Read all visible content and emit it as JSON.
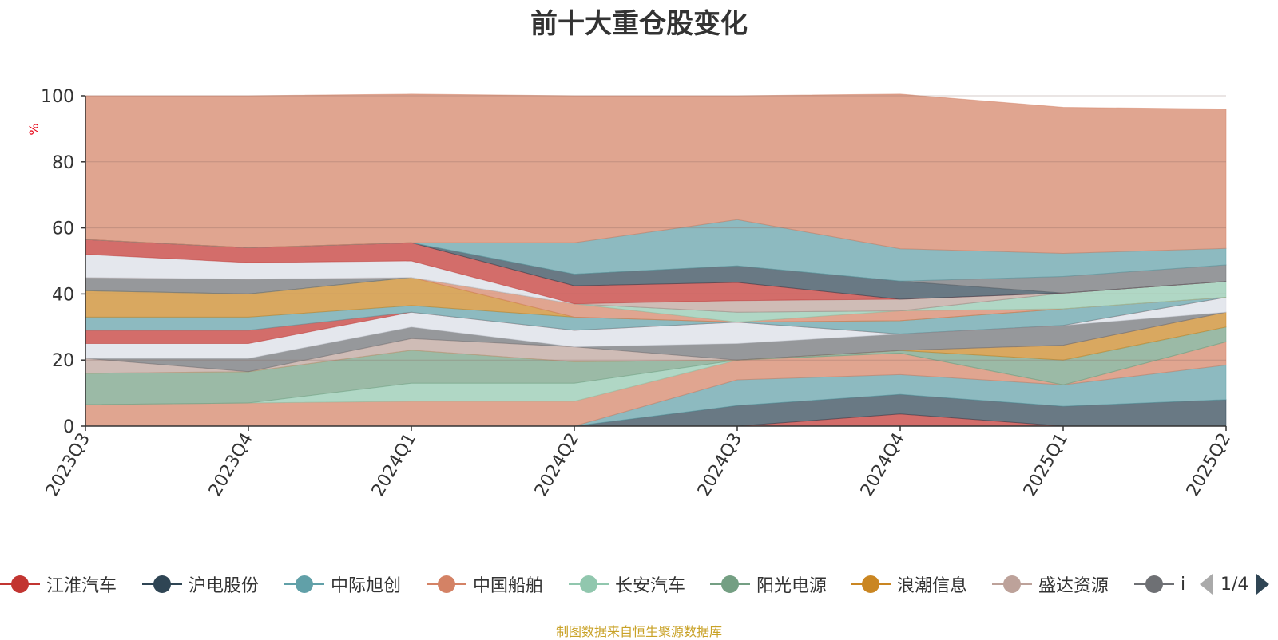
{
  "title": "前十大重仓股变化",
  "footer": "制图数据来自恒生聚源数据库",
  "legend": {
    "page_indicator": "1/4",
    "items": [
      {
        "label": "江淮汽车",
        "color": "#c23531"
      },
      {
        "label": "沪电股份",
        "color": "#2f4554"
      },
      {
        "label": "中际旭创",
        "color": "#61a0a8"
      },
      {
        "label": "中国船舶",
        "color": "#d48265"
      },
      {
        "label": "长安汽车",
        "color": "#91c7ae"
      },
      {
        "label": "阳光电源",
        "color": "#749f83"
      },
      {
        "label": "浪潮信息",
        "color": "#ca8622"
      },
      {
        "label": "盛达资源",
        "color": "#bda29a"
      },
      {
        "label": "i",
        "color": "#6e7074"
      }
    ]
  },
  "chart_data": {
    "type": "area",
    "stacked": true,
    "xlabel": "",
    "ylabel": "%",
    "ylim": [
      0,
      100
    ],
    "yticks": [
      0,
      20,
      40,
      60,
      80,
      100
    ],
    "categories": [
      "2023Q3",
      "2023Q4",
      "2024Q1",
      "2024Q2",
      "2024Q3",
      "2024Q4",
      "2025Q1",
      "2025Q2"
    ],
    "series": [
      {
        "color": "#c23531",
        "values": [
          0,
          0,
          0,
          0,
          0,
          3.7,
          0,
          0
        ]
      },
      {
        "color": "#2f4554",
        "values": [
          0,
          0,
          0,
          0,
          6.2,
          5.9,
          6.0,
          8.0
        ]
      },
      {
        "color": "#61a0a8",
        "values": [
          0,
          0,
          0,
          0,
          7.8,
          6.0,
          6.5,
          10.5
        ]
      },
      {
        "color": "#d48265",
        "values": [
          6.5,
          7.0,
          7.5,
          7.5,
          6.0,
          6.5,
          0,
          7.0
        ]
      },
      {
        "color": "#91c7ae",
        "values": [
          0,
          0,
          5.5,
          5.5,
          0,
          0,
          0,
          0
        ]
      },
      {
        "color": "#749f83",
        "values": [
          9.5,
          9.5,
          10.0,
          6.5,
          0,
          0.8,
          7.5,
          4.5
        ]
      },
      {
        "color": "#ca8622",
        "values": [
          0,
          0,
          0,
          0,
          0,
          0,
          4.5,
          4.5
        ]
      },
      {
        "color": "#bda29a",
        "values": [
          4.5,
          0,
          3.5,
          4.5,
          0,
          0,
          0,
          0
        ]
      },
      {
        "color": "#6e7074",
        "values": [
          0,
          4.0,
          3.5,
          0,
          5.0,
          5.0,
          6.0,
          0
        ]
      },
      {
        "color": "#d9dee6",
        "values": [
          4.5,
          4.5,
          4.5,
          5.0,
          6.5,
          0,
          0,
          4.5
        ]
      },
      {
        "color": "#c23531",
        "values": [
          4.0,
          4.0,
          0,
          0,
          0,
          0,
          0,
          0
        ]
      },
      {
        "color": "#61a0a8",
        "values": [
          4.0,
          4.0,
          2.0,
          4.0,
          0,
          4.0,
          5.0,
          0
        ]
      },
      {
        "color": "#ca8622",
        "values": [
          8.0,
          7.0,
          8.5,
          0,
          0,
          0,
          0,
          0
        ]
      },
      {
        "color": "#d48265",
        "values": [
          0,
          0,
          0,
          4.0,
          0,
          3.0,
          0,
          0
        ]
      },
      {
        "color": "#91c7ae",
        "values": [
          0,
          0,
          0,
          0,
          3.0,
          0,
          4.8,
          4.8
        ]
      },
      {
        "color": "#6e7074",
        "values": [
          4.0,
          4.5,
          0,
          0,
          0,
          0,
          0,
          0
        ]
      },
      {
        "color": "#bda29a",
        "values": [
          0,
          0,
          0,
          0,
          3.5,
          3.5,
          0,
          0
        ]
      },
      {
        "color": "#d9dee6",
        "values": [
          7.0,
          5.0,
          5.0,
          0,
          0,
          0,
          0,
          0
        ]
      },
      {
        "color": "#c23531",
        "values": [
          4.5,
          4.5,
          5.5,
          5.5,
          5.5,
          0,
          0,
          0
        ]
      },
      {
        "color": "#2f4554",
        "values": [
          0,
          0,
          0,
          3.5,
          5.0,
          5.5,
          0,
          0
        ]
      },
      {
        "color": "#6e7074",
        "values": [
          0,
          0,
          0,
          0,
          0,
          0,
          5.0,
          5.0
        ]
      },
      {
        "color": "#61a0a8",
        "values": [
          0,
          0,
          0,
          9.5,
          14.0,
          9.8,
          7.0,
          5.0
        ]
      },
      {
        "color": "#d48265",
        "values": [
          43.5,
          46.0,
          45.0,
          44.5,
          37.5,
          46.8,
          44.2,
          42.2
        ]
      }
    ]
  }
}
